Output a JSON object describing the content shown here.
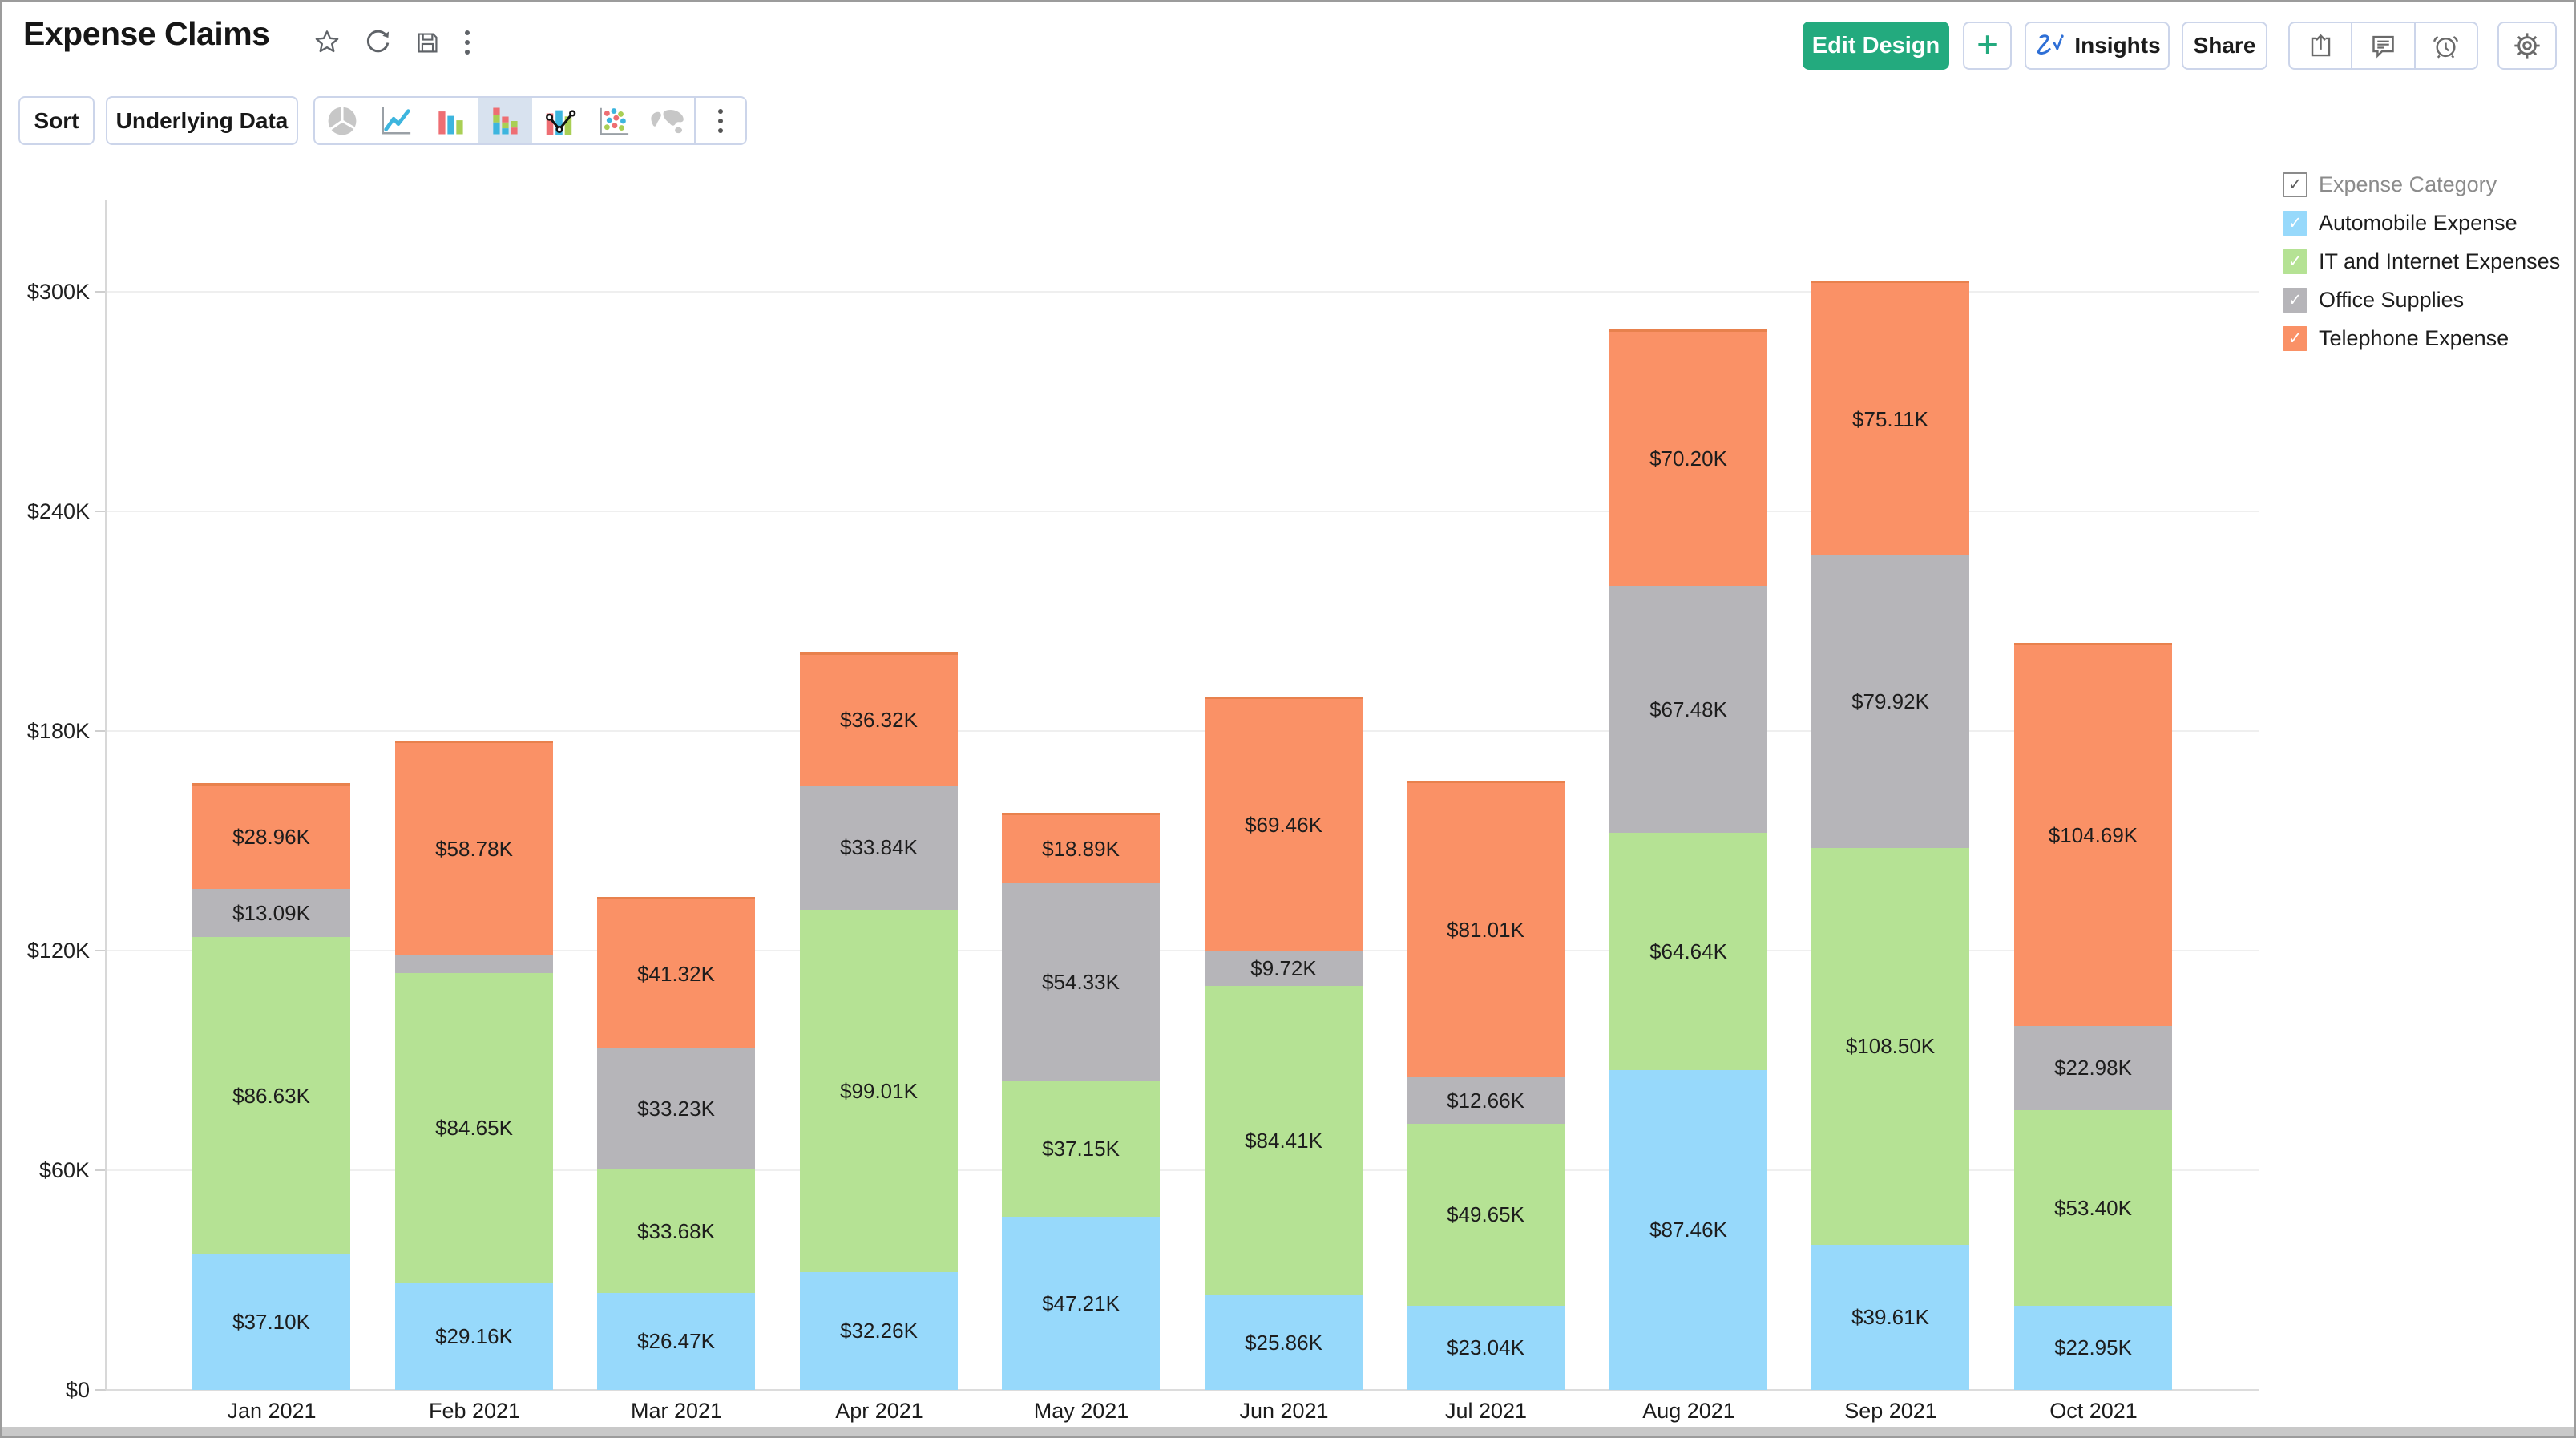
{
  "header": {
    "title": "Expense Claims",
    "title_icons": [
      "star-icon",
      "refresh-icon",
      "save-icon",
      "more-vertical-icon"
    ],
    "buttons": {
      "edit_design": "Edit Design",
      "add": "+",
      "insights": "Insights",
      "share": "Share"
    },
    "action_icons": [
      "export-icon",
      "comment-icon",
      "alert-icon",
      "settings-icon"
    ],
    "accent_green": "#23aa7e",
    "zia_blue": "#2e6fd6"
  },
  "toolbar": {
    "sort": "Sort",
    "underlying_data": "Underlying Data",
    "chart_types": [
      {
        "name": "pie-chart",
        "selected": false
      },
      {
        "name": "line-chart",
        "selected": false
      },
      {
        "name": "bar-chart",
        "selected": false
      },
      {
        "name": "stacked-bar-chart",
        "selected": true
      },
      {
        "name": "combination-chart",
        "selected": false
      },
      {
        "name": "scatter-chart",
        "selected": false
      },
      {
        "name": "map-chart",
        "selected": false
      },
      {
        "name": "more-chart-types",
        "selected": false
      }
    ],
    "selected_bg": "#d8e2ef"
  },
  "legend": {
    "title": "Expense Category",
    "items": [
      {
        "label": "Automobile Expense",
        "color": "#97d9fb",
        "checked": true
      },
      {
        "label": "IT and Internet Expenses",
        "color": "#b5e294",
        "checked": true
      },
      {
        "label": "Office Supplies",
        "color": "#b6b5b9",
        "checked": true
      },
      {
        "label": "Telephone Expense",
        "color": "#fa9166",
        "checked": true
      }
    ]
  },
  "chart_data": {
    "type": "bar",
    "stacked": true,
    "categories": [
      "Jan 2021",
      "Feb 2021",
      "Mar 2021",
      "Apr 2021",
      "May 2021",
      "Jun 2021",
      "Jul 2021",
      "Aug 2021",
      "Sep 2021",
      "Oct 2021"
    ],
    "unit": "USD thousands",
    "series": [
      {
        "name": "Automobile Expense",
        "color": "#97d9fb",
        "values": [
          37.1,
          29.16,
          26.47,
          32.26,
          47.21,
          25.86,
          23.04,
          87.46,
          39.61,
          22.95
        ],
        "labels": [
          "$37.10K",
          "$29.16K",
          "$26.47K",
          "$32.26K",
          "$47.21K",
          "$25.86K",
          "$23.04K",
          "$87.46K",
          "$39.61K",
          "$22.95K"
        ]
      },
      {
        "name": "IT and Internet Expenses",
        "color": "#b5e294",
        "values": [
          86.63,
          84.65,
          33.68,
          99.01,
          37.15,
          84.41,
          49.65,
          64.64,
          108.5,
          53.4
        ],
        "labels": [
          "$86.63K",
          "$84.65K",
          "$33.68K",
          "$99.01K",
          "$37.15K",
          "$84.41K",
          "$49.65K",
          "$64.64K",
          "$108.50K",
          "$53.40K"
        ]
      },
      {
        "name": "Office Supplies",
        "color": "#b6b5b9",
        "values": [
          13.09,
          4.77,
          33.23,
          33.84,
          54.33,
          9.72,
          12.66,
          67.48,
          79.92,
          22.98
        ],
        "labels": [
          "$13.09K",
          null,
          "$33.23K",
          "$33.84K",
          "$54.33K",
          "$9.72K",
          "$12.66K",
          "$67.48K",
          "$79.92K",
          "$22.98K"
        ]
      },
      {
        "name": "Telephone Expense",
        "color": "#fa9166",
        "values": [
          28.96,
          58.78,
          41.32,
          36.32,
          18.89,
          69.46,
          81.01,
          70.2,
          75.11,
          104.69
        ],
        "labels": [
          "$28.96K",
          "$58.78K",
          "$41.32K",
          "$36.32K",
          "$18.89K",
          "$69.46K",
          "$81.01K",
          "$70.20K",
          "$75.11K",
          "$104.69K"
        ]
      }
    ],
    "y_ticks": [
      "$0",
      "$60K",
      "$120K",
      "$180K",
      "$240K",
      "$300K"
    ],
    "ylim": [
      0,
      300
    ],
    "xlabel": "",
    "ylabel": "",
    "grid": "horizontal",
    "legend_position": "top-right"
  }
}
